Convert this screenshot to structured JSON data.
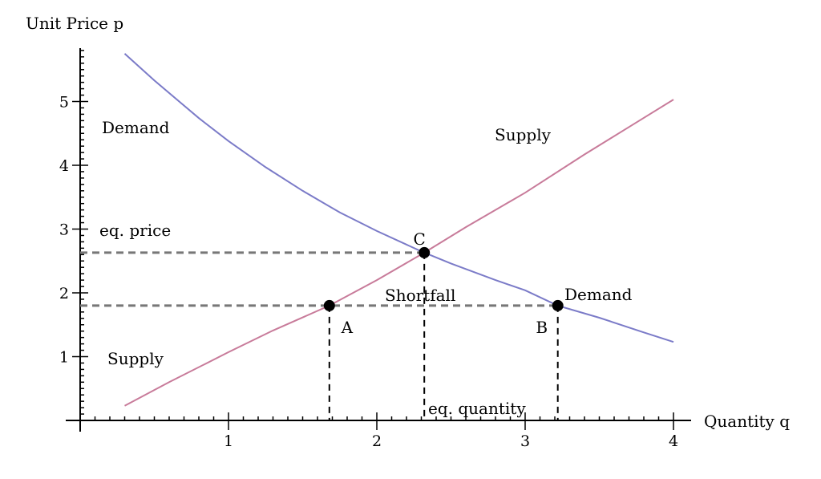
{
  "chart_data": {
    "type": "line",
    "xlabel": "Quantity q",
    "ylabel": "Unit Price p",
    "xlim": [
      0,
      4
    ],
    "ylim": [
      0,
      5.8
    ],
    "x_ticks": [
      1,
      2,
      3,
      4
    ],
    "y_ticks": [
      1,
      2,
      3,
      4,
      5
    ],
    "grid": false,
    "series": [
      {
        "color": "#7b7bc8",
        "x": [
          0.3,
          0.5,
          0.8,
          1.0,
          1.25,
          1.5,
          1.75,
          2.0,
          2.3,
          2.5,
          2.8,
          3.0,
          3.22,
          3.5,
          3.8,
          4.0
        ],
        "y": [
          5.75,
          5.33,
          4.74,
          4.38,
          3.97,
          3.6,
          3.26,
          2.97,
          2.65,
          2.46,
          2.2,
          2.04,
          1.8,
          1.61,
          1.38,
          1.23
        ]
      },
      {
        "color": "#c87b9a",
        "x": [
          0.3,
          0.6,
          1.0,
          1.3,
          1.68,
          2.0,
          2.32,
          2.6,
          3.0,
          3.4,
          3.7,
          4.0
        ],
        "y": [
          0.23,
          0.6,
          1.07,
          1.41,
          1.8,
          2.2,
          2.63,
          3.03,
          3.57,
          4.17,
          4.6,
          5.03
        ]
      }
    ],
    "points": [
      {
        "label": "C",
        "x": 2.32,
        "y": 2.63
      },
      {
        "label": "A",
        "x": 1.68,
        "y": 1.8
      },
      {
        "label": "B",
        "x": 3.22,
        "y": 1.8
      }
    ],
    "annotations": {
      "demand_upper": "Demand",
      "supply_upper": "Supply",
      "eq_price": "eq. price",
      "shortfall": "Shortfall",
      "demand_lower": "Demand",
      "supply_lower": "Supply",
      "eq_quantity": "eq. quantity"
    }
  }
}
